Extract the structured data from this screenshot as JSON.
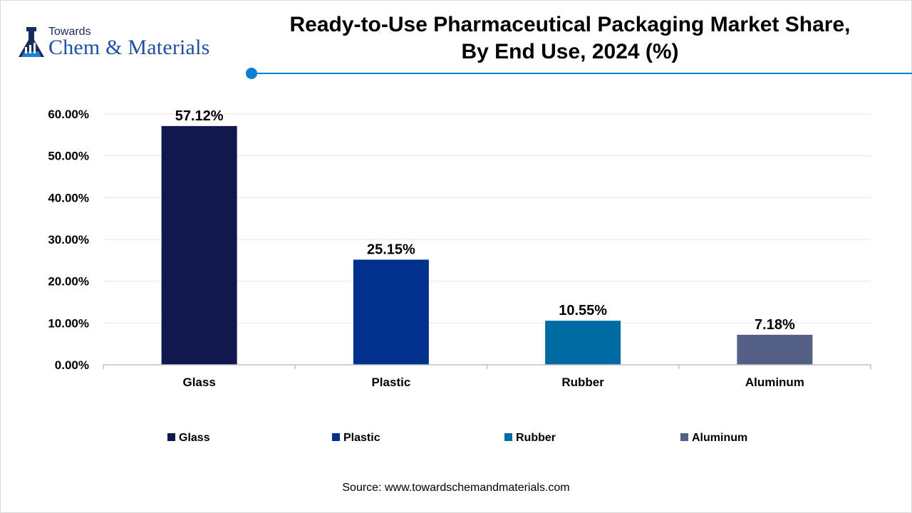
{
  "logo": {
    "line1": "Towards",
    "line2": "Chem & Materials"
  },
  "title_lines": [
    "Ready-to-Use Pharmaceutical Packaging Market Share,",
    "By End Use, 2024 (%)"
  ],
  "source": "Source: www.towardschemandmaterials.com",
  "colors": {
    "accent": "#0b7fd1",
    "logo_navy": "#1b2a5c",
    "logo_blue": "#1f4fa0",
    "grid": "#e6e6e6",
    "axis": "#bfbfbf"
  },
  "chart_data": {
    "type": "bar",
    "title": "Ready-to-Use Pharmaceutical Packaging Market Share, By End Use, 2024 (%)",
    "categories": [
      "Glass",
      "Plastic",
      "Rubber",
      "Aluminum"
    ],
    "values": [
      57.12,
      25.15,
      10.55,
      7.18
    ],
    "value_labels": [
      "57.12%",
      "25.15%",
      "10.55%",
      "7.18%"
    ],
    "bar_colors": [
      "#10184e",
      "#00318c",
      "#006aa3",
      "#545f85"
    ],
    "ylim": [
      0,
      60
    ],
    "yticks": [
      0,
      10,
      20,
      30,
      40,
      50,
      60
    ],
    "ytick_labels": [
      "0.00%",
      "10.00%",
      "20.00%",
      "30.00%",
      "40.00%",
      "50.00%",
      "60.00%"
    ],
    "xlabel": "",
    "ylabel": "",
    "grid": true,
    "legend": {
      "position": "bottom",
      "entries": [
        "Glass",
        "Plastic",
        "Rubber",
        "Aluminum"
      ]
    }
  }
}
